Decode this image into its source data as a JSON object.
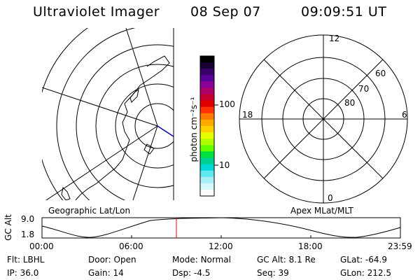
{
  "header": {
    "instrument": "Ultraviolet Imager",
    "date": "08 Sep 07",
    "time": "09:09:51 UT"
  },
  "left_panel": {
    "label": "Geographic Lat/Lon"
  },
  "right_panel": {
    "label": "Apex MLat/MLT",
    "mlt_labels": {
      "top": "12",
      "left": "18",
      "right": "6",
      "bottom": "0"
    },
    "lat_labels": [
      "60",
      "70",
      "80"
    ]
  },
  "colorbar": {
    "unit_label": "photon cm⁻²s⁻¹",
    "ticks": [
      "100",
      "10"
    ],
    "colors": [
      "#000000",
      "#1a0030",
      "#3a006a",
      "#5a0099",
      "#8b0099",
      "#b0006a",
      "#c80030",
      "#e00000",
      "#ff3300",
      "#ff7a00",
      "#ffaa00",
      "#ffd000",
      "#e8ff00",
      "#b0ff00",
      "#60ff00",
      "#00e040",
      "#00d090",
      "#00d8d8",
      "#60e8f0",
      "#a8f0f8",
      "#d8f8ff",
      "#ffffff"
    ]
  },
  "orbit_plot": {
    "ylabel": "GC Alt",
    "y_ticks": [
      "9.0",
      "1.8"
    ],
    "x_ticks": [
      "00:00",
      "06:00",
      "12:00",
      "18:00",
      "23:59"
    ],
    "marker_time": "09:09:51"
  },
  "status": {
    "row1": [
      {
        "key": "Flt:",
        "value": "LBHL"
      },
      {
        "key": "Door:",
        "value": "Open"
      },
      {
        "key": "Mode:",
        "value": "Normal"
      },
      {
        "key": "GC Alt:",
        "value": "8.1 Re"
      },
      {
        "key": "GLat:",
        "value": "-64.9"
      }
    ],
    "row2": [
      {
        "key": "IP:",
        "value": "36.0"
      },
      {
        "key": "Gain:",
        "value": "14"
      },
      {
        "key": "Dsp:",
        "value": "-4.5"
      },
      {
        "key": "Seq:",
        "value": "39"
      },
      {
        "key": "GLon:",
        "value": "212.5"
      }
    ]
  },
  "colors": {
    "marker": "#ff0000",
    "meridian": "#0000aa"
  }
}
